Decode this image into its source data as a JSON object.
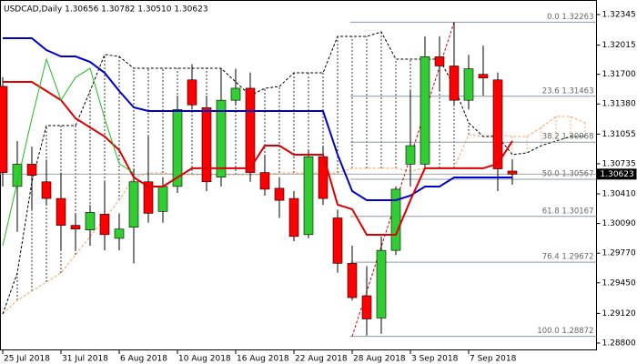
{
  "chart_data": {
    "type": "candlestick",
    "title": "USDCAD,Daily  1.30656 1.30782 1.30510 1.30623",
    "categories": [
      "25 Jul 2018",
      null,
      null,
      null,
      "31 Jul 2018",
      null,
      null,
      null,
      "6 Aug 2018",
      null,
      null,
      null,
      "10 Aug 2018",
      null,
      null,
      null,
      "16 Aug 2018",
      null,
      null,
      null,
      "22 Aug 2018",
      null,
      null,
      null,
      "28 Aug 2018",
      null,
      null,
      null,
      "3 Sep 2018",
      null,
      null,
      null,
      "7 Sep 2018",
      null,
      null,
      null,
      null,
      null,
      null,
      null,
      null
    ],
    "open": [
      1.3157,
      1.3049,
      1.3073,
      1.3054,
      1.3036,
      1.3007,
      1.3002,
      1.3019,
      1.2993,
      1.3005,
      1.3054,
      1.3022,
      1.3049,
      1.3164,
      1.3134,
      1.3059,
      1.3142,
      1.3155,
      1.3064,
      1.3047,
      1.3036,
      1.2997,
      1.3081,
      1.3015,
      1.2966,
      1.2931,
      1.2907,
      1.298,
      1.3073,
      1.3073,
      1.3189,
      1.3179,
      1.3142,
      1.317,
      1.3164,
      1.30656,
      null,
      null,
      null,
      null,
      null
    ],
    "high": [
      1.3167,
      1.3098,
      1.3092,
      1.3078,
      1.3064,
      1.302,
      1.3029,
      1.3054,
      1.302,
      1.3068,
      1.3103,
      1.3059,
      1.3147,
      1.3181,
      1.3147,
      1.3176,
      1.3176,
      1.3172,
      1.3083,
      1.3059,
      1.3044,
      1.3088,
      1.3093,
      1.3024,
      1.2985,
      1.2963,
      1.2995,
      1.3049,
      1.3152,
      1.3211,
      1.3211,
      1.3226,
      1.3191,
      1.3201,
      1.3172,
      1.30782,
      null,
      null,
      null,
      null,
      null
    ],
    "low": [
      1.3049,
      1.3,
      1.3024,
      1.3029,
      1.298,
      1.298,
      1.2985,
      1.298,
      1.298,
      1.2966,
      1.301,
      1.301,
      1.3042,
      1.3132,
      1.3044,
      1.3049,
      1.3137,
      1.3054,
      1.3039,
      1.3015,
      1.299,
      1.2993,
      1.3029,
      1.2956,
      1.2926,
      1.2888,
      1.289,
      1.2975,
      1.3049,
      1.3068,
      1.3152,
      1.3137,
      1.3132,
      1.3147,
      1.3044,
      1.3051,
      null,
      null,
      null,
      null,
      null
    ],
    "close": [
      1.3064,
      1.3073,
      1.3061,
      1.3036,
      1.3007,
      1.3003,
      1.3021,
      1.2997,
      1.3003,
      1.3054,
      1.302,
      1.3049,
      1.3132,
      1.3137,
      1.3054,
      1.3142,
      1.3155,
      1.3064,
      1.3046,
      1.3034,
      1.2995,
      1.3081,
      1.3036,
      1.2966,
      1.2929,
      1.2906,
      1.298,
      1.3046,
      1.3093,
      1.3189,
      1.3179,
      1.3142,
      1.3176,
      1.3166,
      1.3068,
      1.30623,
      null,
      null,
      null,
      null,
      null
    ],
    "up_color": "#32cd32",
    "down_color": "#ff0000",
    "lines": [
      {
        "color": "#0000cc",
        "width": 2,
        "values": [
          1.3209,
          1.3209,
          1.3209,
          1.31962,
          1.31893,
          1.31893,
          1.31834,
          1.31716,
          1.3152,
          1.31343,
          1.31304,
          1.31304,
          1.31304,
          1.31304,
          1.31304,
          1.31304,
          1.31304,
          1.31304,
          1.31304,
          1.31304,
          1.31304,
          1.31304,
          1.31304,
          1.30833,
          1.3044,
          1.30342,
          1.30342,
          1.30342,
          1.30391,
          1.30489,
          1.30489,
          1.30587,
          1.30587,
          1.30587,
          1.30587,
          1.30587,
          null,
          null,
          null,
          null,
          null
        ]
      },
      {
        "color": "#dd0000",
        "width": 2,
        "values": [
          1.31618,
          1.31618,
          1.31618,
          1.3152,
          1.31422,
          1.31225,
          1.31127,
          1.31029,
          1.30882,
          1.30587,
          1.30489,
          1.30489,
          1.30587,
          1.30686,
          1.30686,
          1.30686,
          1.30686,
          1.30686,
          1.30931,
          1.30931,
          1.30833,
          1.30833,
          1.30833,
          1.30293,
          1.30244,
          1.29968,
          1.29968,
          1.29968,
          1.30342,
          1.30686,
          1.30686,
          1.30686,
          1.30686,
          1.30686,
          1.30735,
          1.3098,
          null,
          null,
          null,
          null,
          null
        ]
      },
      {
        "color": "#22bb22",
        "width": 1,
        "values": [
          1.29851,
          1.30538,
          1.31225,
          1.31864,
          1.31422,
          1.31667,
          1.31765,
          1.31225,
          1.30735,
          1.30636,
          null,
          null,
          null,
          null,
          null,
          null,
          null,
          null,
          null,
          null,
          null,
          null,
          null,
          null,
          null,
          null,
          null,
          null,
          null,
          null,
          null,
          null,
          null,
          null,
          null,
          null,
          null,
          null,
          null,
          null,
          null
        ]
      }
    ],
    "cloud": {
      "span_a_color": "#f4a460",
      "span_b_color": "#000000",
      "span_a": [
        1.29114,
        1.29261,
        1.2936,
        1.29458,
        1.29556,
        1.29752,
        1.29949,
        1.30145,
        1.30342,
        1.30587,
        1.30636,
        1.30636,
        1.30617,
        1.30617,
        1.30617,
        1.30617,
        1.30617,
        1.30617,
        1.30617,
        1.30636,
        1.30636,
        1.30636,
        1.30636,
        1.30636,
        1.30686,
        1.30686,
        1.30686,
        1.30686,
        1.30656,
        1.30686,
        1.30686,
        1.30686,
        1.31049,
        1.31029,
        1.31049,
        1.31029,
        1.31029,
        1.31127,
        1.31245,
        1.31245,
        1.31176
      ],
      "span_b": [
        1.29114,
        1.29556,
        1.30538,
        1.31147,
        1.31147,
        1.31147,
        1.3152,
        1.31913,
        1.31893,
        1.31765,
        1.31765,
        1.31765,
        1.31765,
        1.31765,
        1.31765,
        1.31765,
        1.31618,
        1.31471,
        1.31549,
        1.31569,
        1.31716,
        1.31716,
        1.31716,
        1.32109,
        1.32109,
        1.32109,
        1.32158,
        1.31864,
        1.31864,
        1.31864,
        1.31864,
        1.31569,
        1.31176,
        1.31029,
        1.31029,
        1.30833,
        1.30852,
        1.30931,
        1.3098,
        1.31029,
        1.31029
      ]
    },
    "fib_levels": [
      {
        "value": 1.32263,
        "label": "0.0 1.32263"
      },
      {
        "value": 1.31463,
        "label": "23.6 1.31463"
      },
      {
        "value": 1.30968,
        "label": "38.2 1.30968"
      },
      {
        "value": 1.30567,
        "label": "50.0 1.30567"
      },
      {
        "value": 1.30167,
        "label": "61.8 1.30167"
      },
      {
        "value": 1.29672,
        "label": "76.4 1.29672"
      },
      {
        "value": 1.28872,
        "label": "100.0 1.28872"
      }
    ],
    "ylim": [
      1.28721,
      1.32502
    ],
    "yticks": [
      1.32345,
      1.32015,
      {
        "value": 1.317,
        "label": "1.31700"
      },
      {
        "value": 1.3138,
        "label": "1.31380"
      },
      1.31055,
      1.30735,
      {
        "value": 1.3041,
        "label": "1.30410"
      },
      {
        "value": 1.3009,
        "label": "1.30090"
      },
      {
        "value": 1.2977,
        "label": "1.29770"
      },
      {
        "value": 1.2945,
        "label": "1.29450"
      },
      {
        "value": 1.2912,
        "label": "1.29120"
      },
      {
        "value": 1.288,
        "label": "1.28800"
      }
    ]
  }
}
